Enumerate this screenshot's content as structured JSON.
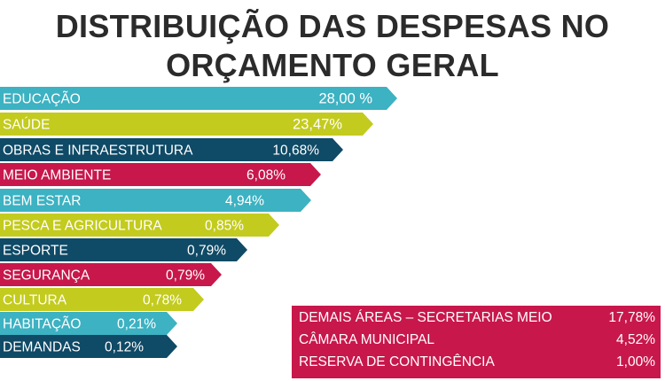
{
  "title": {
    "line1": "DISTRIBUIÇÃO DAS DESPESAS NO",
    "line2": "ORÇAMENTO GERAL"
  },
  "colors": {
    "teal": "#3cb2c2",
    "lime": "#c3cb1e",
    "navy": "#0f4a66",
    "crimson": "#c8174b",
    "text_dark": "#2b2b2b",
    "white": "#ffffff"
  },
  "chart_data": {
    "type": "bar",
    "orientation": "horizontal",
    "categories": [
      "EDUCAÇÃO",
      "SAÚDE",
      "OBRAS E INFRAESTRUTURA",
      "MEIO AMBIENTE",
      "BEM ESTAR",
      "PESCA E AGRICULTURA",
      "ESPORTE",
      "SEGURANÇA",
      "CULTURA",
      "HABITAÇÃO",
      "DEMANDAS"
    ],
    "values": [
      28.0,
      23.47,
      10.68,
      6.08,
      4.94,
      0.85,
      0.79,
      0.79,
      0.78,
      0.21,
      0.12
    ],
    "value_labels": [
      "28,00 %",
      "23,47%",
      "10,68%",
      "6,08%",
      "4,94%",
      "0,85%",
      "0,79%",
      "0,79%",
      "0,78%",
      "0,21%",
      "0,12%"
    ],
    "bar_colors": [
      "#3cb2c2",
      "#c3cb1e",
      "#0f4a66",
      "#c8174b",
      "#3cb2c2",
      "#c3cb1e",
      "#0f4a66",
      "#c8174b",
      "#c3cb1e",
      "#3cb2c2",
      "#0f4a66"
    ],
    "title": "DISTRIBUIÇÃO DAS DESPESAS NO ORÇAMENTO GERAL",
    "xlabel": "",
    "ylabel": "",
    "grid": false,
    "summary_table": [
      {
        "label": "DEMAIS ÁREAS – SECRETARIAS MEIO",
        "value": "17,78%"
      },
      {
        "label": "CÂMARA MUNICIPAL",
        "value": "4,52%"
      },
      {
        "label": "RESERVA DE CONTINGÊNCIA",
        "value": "1,00%"
      }
    ]
  }
}
